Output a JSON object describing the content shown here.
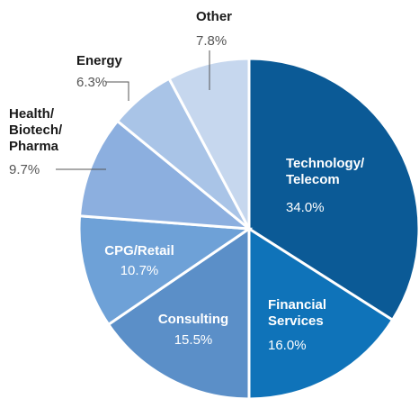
{
  "chart_data": {
    "type": "pie",
    "categories": [
      "Technology/\nTelecom",
      "Financial\nServices",
      "Consulting",
      "CPG/Retail",
      "Health/\nBiotech/\nPharma",
      "Energy",
      "Other"
    ],
    "values": [
      34.0,
      16.0,
      15.5,
      10.7,
      9.7,
      6.3,
      7.8
    ],
    "value_labels": [
      "34.0%",
      "16.0%",
      "15.5%",
      "10.7%",
      "9.7%",
      "6.3%",
      "7.8%"
    ],
    "colors": [
      "#0b5a96",
      "#0f73b9",
      "#5b8fc8",
      "#6ea1d7",
      "#8cafdf",
      "#a9c4e7",
      "#c6d7ee"
    ]
  }
}
